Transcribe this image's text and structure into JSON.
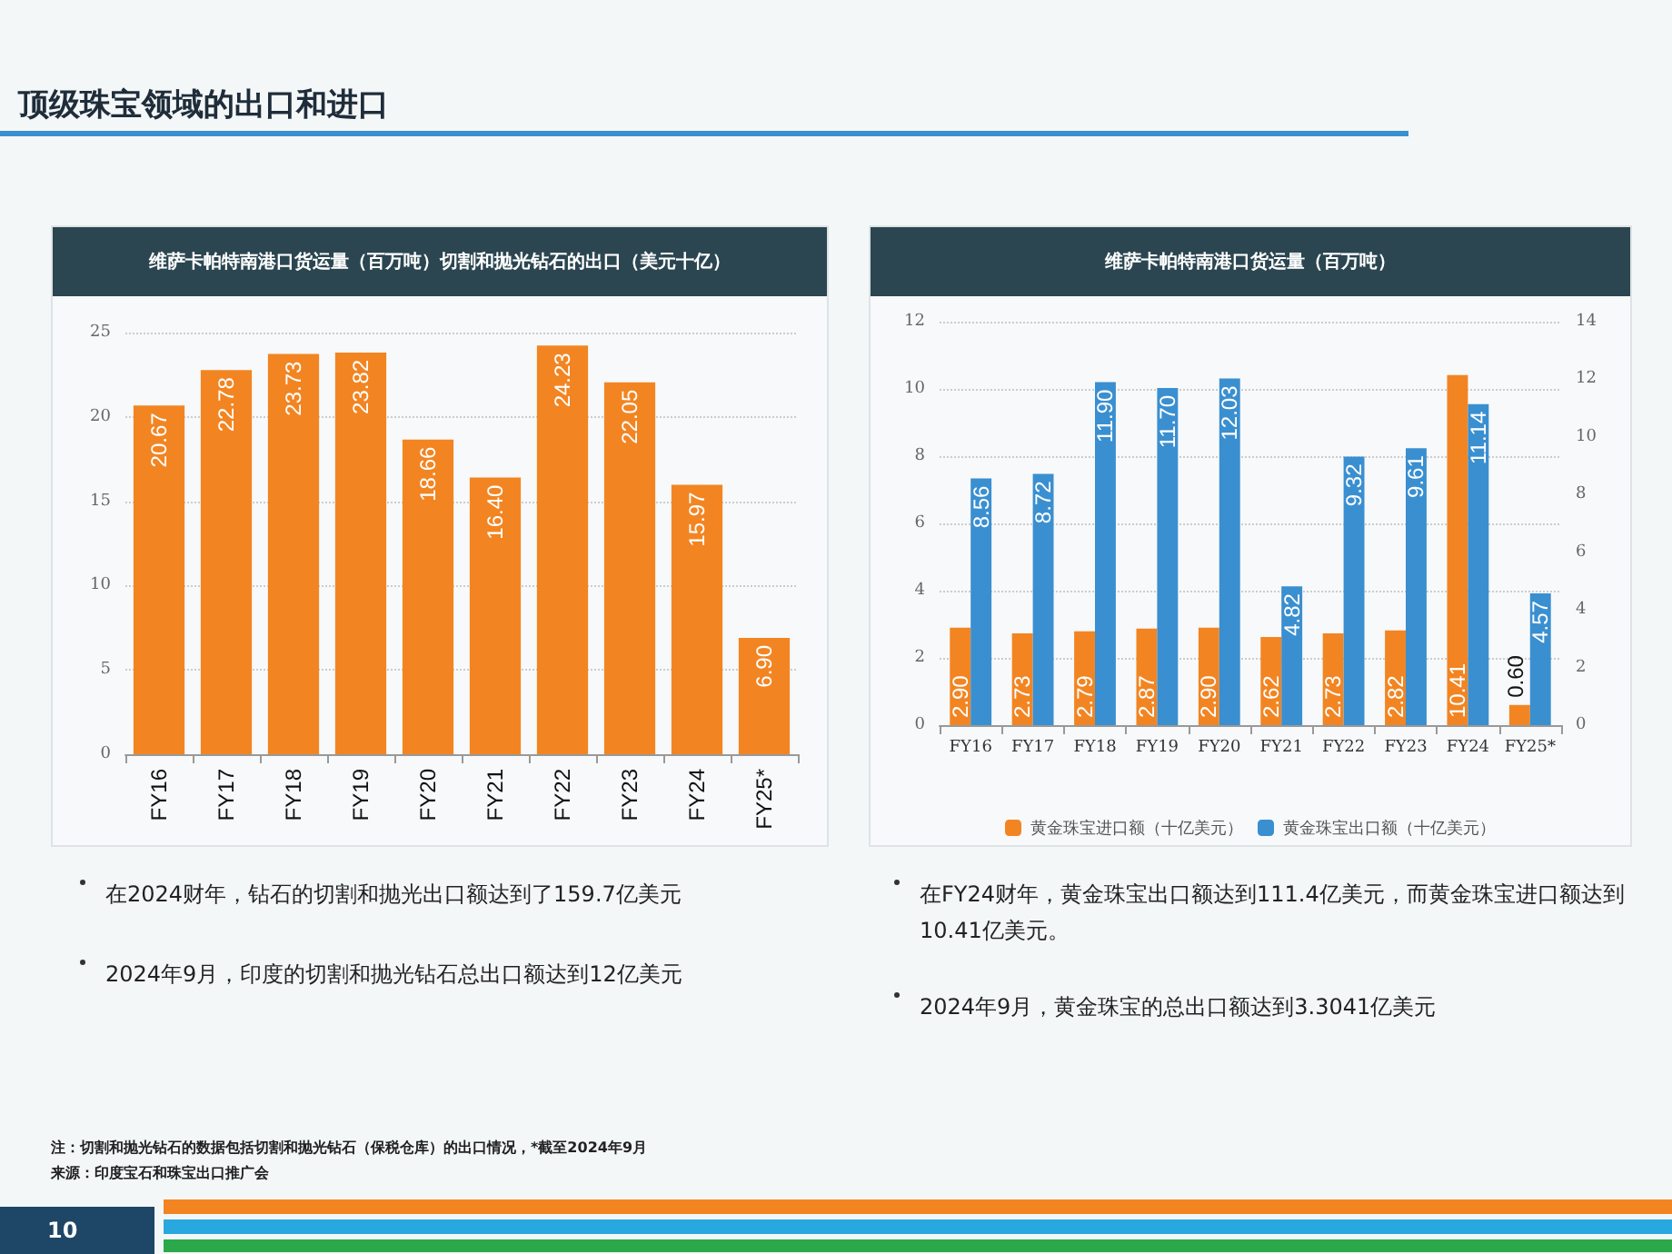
{
  "chart_data": [
    {
      "type": "bar",
      "title": "维萨卡帕特南港口货运量（百万吨）切割和抛光钻石的出口（美元十亿）",
      "categories": [
        "FY16",
        "FY17",
        "FY18",
        "FY19",
        "FY20",
        "FY21",
        "FY22",
        "FY23",
        "FY24",
        "FY25*"
      ],
      "series": [
        {
          "color": "#f28522",
          "values": [
            20.67,
            22.78,
            23.73,
            23.82,
            18.66,
            16.4,
            24.23,
            22.05,
            15.97,
            6.9
          ],
          "value_labels": [
            "20.67",
            "22.78",
            "23.73",
            "23.82",
            "18.66",
            "16.40",
            "24.23",
            "22.05",
            "15.97",
            "6.90"
          ]
        }
      ],
      "ylim": [
        0,
        25
      ],
      "yticks": [
        0,
        5,
        10,
        15,
        20,
        25
      ],
      "grid": "y",
      "legend": false,
      "annotations": [
        "顶级珠宝领域的出口和进口",
        "在2024财年，钻石的切割和抛光出口额达到了159.7亿美元",
        "2024年9月，印度的切割和抛光钻石总出口额达到12亿美元",
        "注：切割和抛光钻石的数据包括切割和抛光钻石（保税仓库）的出口情况，*截至2024年9月",
        "来源：印度宝石和珠宝出口推广会",
        "10"
      ]
    },
    {
      "type": "bar",
      "title": "维萨卡帕特南港口货运量（百万吨）",
      "categories": [
        "FY16",
        "FY17",
        "FY18",
        "FY19",
        "FY20",
        "FY21",
        "FY22",
        "FY23",
        "FY24",
        "FY25*"
      ],
      "series": [
        {
          "name": "黄金珠宝进口额（十亿美元）",
          "color": "#f28522",
          "values": [
            2.9,
            2.73,
            2.79,
            2.87,
            2.9,
            2.62,
            2.73,
            2.82,
            10.41,
            0.6
          ],
          "value_labels": [
            "2.90",
            "2.73",
            "2.79",
            "2.87",
            "2.90",
            "2.62",
            "2.73",
            "2.82",
            "10.41",
            "0.60"
          ]
        },
        {
          "name": "黄金珠宝出口额（十亿美元）",
          "color": "#3a8fd0",
          "axis": "y2",
          "values": [
            8.56,
            8.72,
            11.9,
            11.7,
            12.03,
            4.82,
            9.32,
            9.61,
            11.14,
            4.57
          ],
          "value_labels": [
            "8.56",
            "8.72",
            "11.90",
            "11.70",
            "12.03",
            "4.82",
            "9.32",
            "9.61",
            "11.14",
            "4.57"
          ]
        }
      ],
      "ylim": [
        0,
        12
      ],
      "yticks": [
        0,
        2,
        4,
        6,
        8,
        10,
        12
      ],
      "y2lim": [
        0,
        14
      ],
      "y2ticks": [
        0,
        2,
        4,
        6,
        8,
        10,
        12,
        14
      ],
      "grid": "y",
      "legend": "bottom",
      "annotations": [
        "在FY24财年，黄金珠宝出口额达到111.4亿美元，而黄金珠宝进口额达到10.41亿美元。",
        "2024年9月，黄金珠宝的总出口额达到3.3041亿美元"
      ]
    }
  ]
}
